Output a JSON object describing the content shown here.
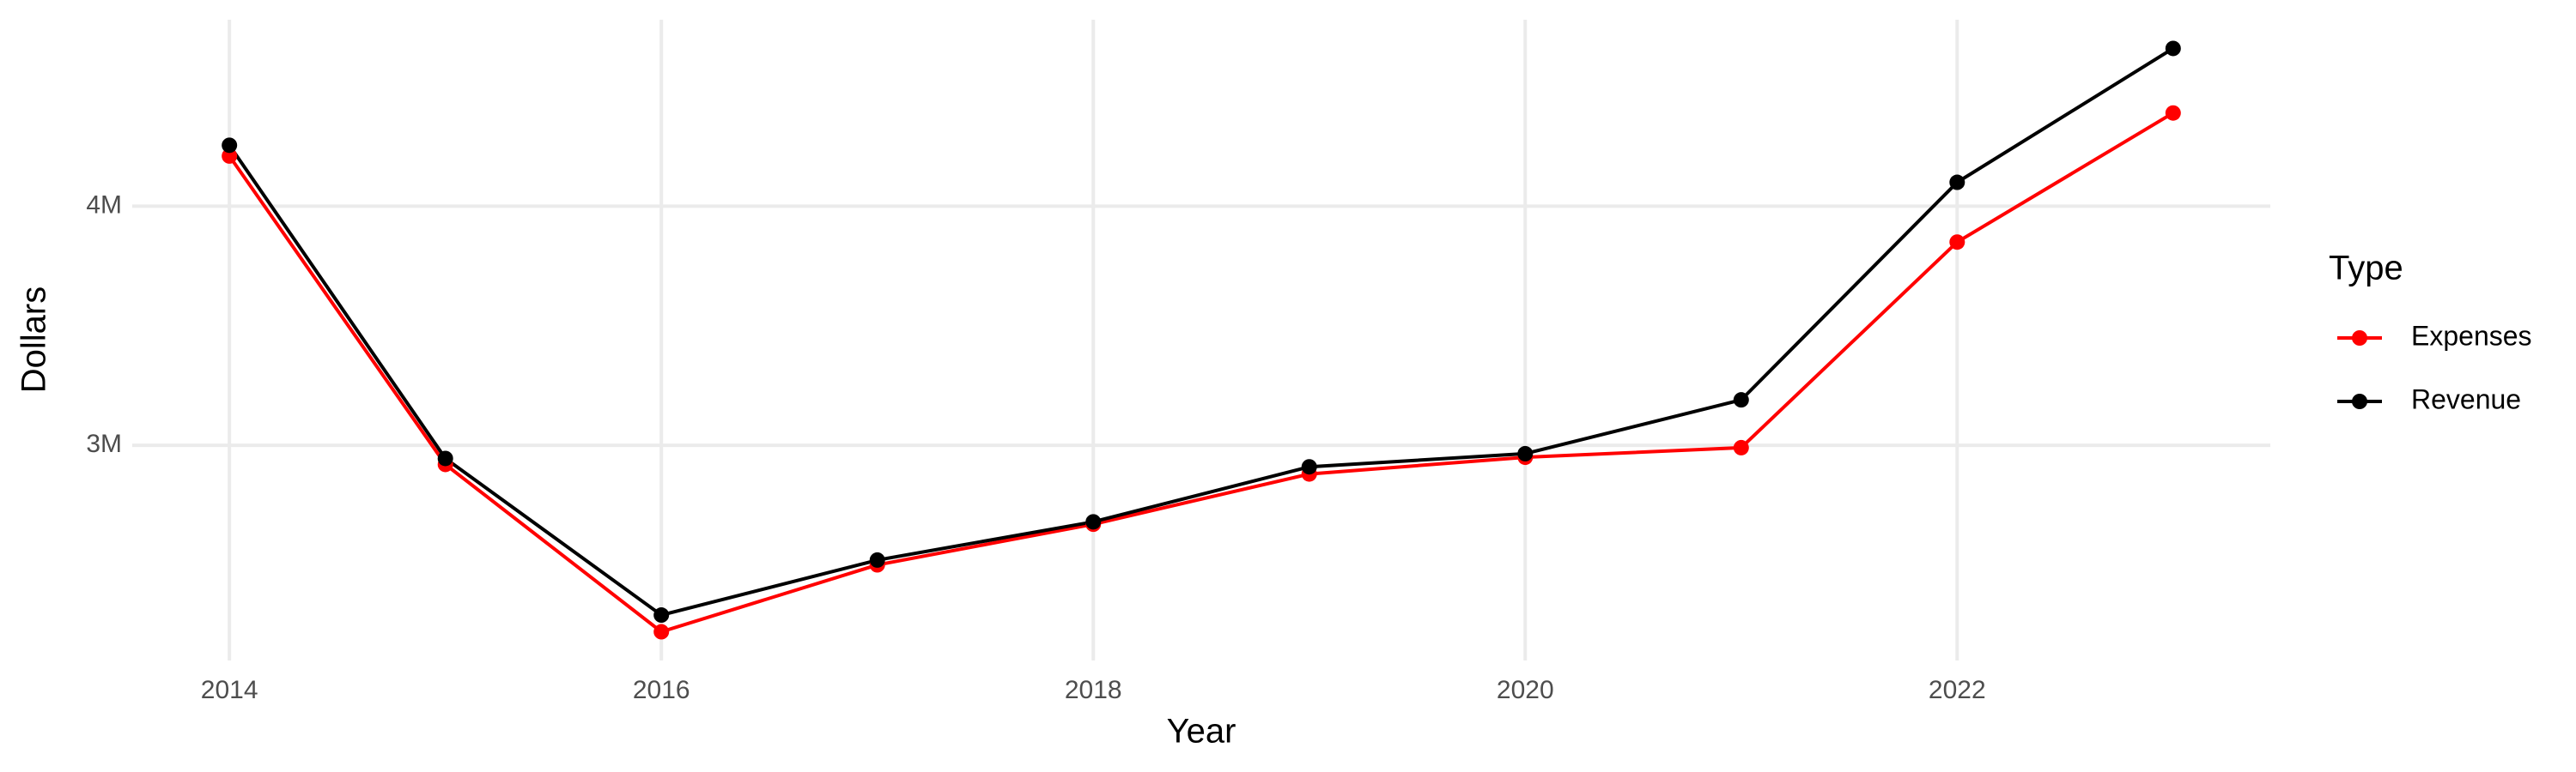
{
  "chart_data": {
    "type": "line",
    "x_label": "Year",
    "y_label": "Dollars",
    "x": [
      2014,
      2015,
      2016,
      2017,
      2018,
      2019,
      2020,
      2021,
      2022,
      2023
    ],
    "series": [
      {
        "name": "Expenses",
        "color": "#ff0000",
        "values": [
          4210000,
          2920000,
          2220000,
          2500000,
          2670000,
          2880000,
          2950000,
          2990000,
          3850000,
          4390000
        ]
      },
      {
        "name": "Revenue",
        "color": "#000000",
        "values": [
          4255000,
          2945000,
          2290000,
          2520000,
          2680000,
          2910000,
          2965000,
          3190000,
          4100000,
          4660000
        ]
      }
    ],
    "xlim": [
      2013.55,
      2023.45
    ],
    "xticks": [
      2014,
      2016,
      2018,
      2020,
      2022
    ],
    "ylim": [
      2100000,
      4780000
    ],
    "yticks": [
      {
        "value": 3000000,
        "label": "3M"
      },
      {
        "value": 4000000,
        "label": "4M"
      }
    ],
    "grid": true,
    "legend_title": "Type",
    "legend_position": "right"
  }
}
